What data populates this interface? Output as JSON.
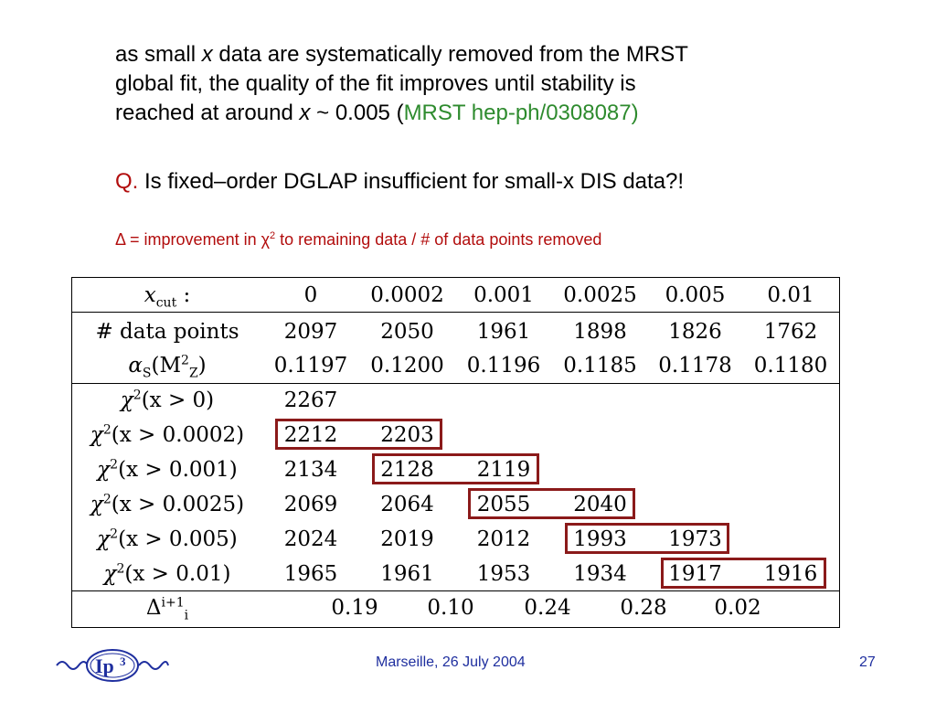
{
  "intro": {
    "line1_a": "as small ",
    "line1_x": "x",
    "line1_b": " data are systematically removed from the MRST",
    "line2": "global fit, the quality of the fit improves until stability is",
    "line3_a": "reached at around ",
    "line3_x": "x",
    "line3_b": " ~ 0.005 (",
    "line3_ref": "MRST hep-ph/0308087)",
    "colors": {
      "text": "#000000",
      "ref": "#2e8b2e"
    }
  },
  "question": {
    "prefix": "Q.",
    "text": " Is fixed–order DGLAP insufficient for small-x DIS data?!",
    "prefix_color": "#b20d0d"
  },
  "delta_note": {
    "a": "Δ = improvement in χ",
    "sup": "2",
    "b": " to remaining data / # of data points removed",
    "color": "#b20d0d"
  },
  "table": {
    "header_row_label": "x_cut :",
    "header_label_main": "x",
    "header_label_sub": "cut",
    "header_label_tail": " :",
    "xcut_values": [
      "0",
      "0.0002",
      "0.001",
      "0.0025",
      "0.005",
      "0.01"
    ],
    "datapoints_label": "# data points",
    "datapoints": [
      "2097",
      "2050",
      "1961",
      "1898",
      "1826",
      "1762"
    ],
    "alpha_label_a": "α",
    "alpha_label_sub": "S",
    "alpha_label_b": "(M",
    "alpha_label_msub": "Z",
    "alpha_label_msup": "2",
    "alpha_label_c": ")",
    "alpha_values": [
      "0.1197",
      "0.1200",
      "0.1196",
      "0.1185",
      "0.1178",
      "0.1180"
    ],
    "chi_rows": [
      {
        "label_a": "χ",
        "label_sup": "2",
        "label_b": "(x > 0)",
        "values": [
          "2267",
          "",
          "",
          "",
          "",
          ""
        ]
      },
      {
        "label_a": "χ",
        "label_sup": "2",
        "label_b": "(x > 0.0002)",
        "values": [
          "2212",
          "2203",
          "",
          "",
          "",
          ""
        ]
      },
      {
        "label_a": "χ",
        "label_sup": "2",
        "label_b": "(x > 0.001)",
        "values": [
          "2134",
          "2128",
          "2119",
          "",
          "",
          ""
        ]
      },
      {
        "label_a": "χ",
        "label_sup": "2",
        "label_b": "(x > 0.0025)",
        "values": [
          "2069",
          "2064",
          "2055",
          "2040",
          "",
          ""
        ]
      },
      {
        "label_a": "χ",
        "label_sup": "2",
        "label_b": "(x > 0.005)",
        "values": [
          "2024",
          "2019",
          "2012",
          "1993",
          "1973",
          ""
        ]
      },
      {
        "label_a": "χ",
        "label_sup": "2",
        "label_b": "(x > 0.01)",
        "values": [
          "1965",
          "1961",
          "1953",
          "1934",
          "1917",
          "1916"
        ]
      }
    ],
    "delta_label_a": "Δ",
    "delta_label_sub": "i",
    "delta_label_sup": "i+1",
    "delta_values": [
      "0.19",
      "0.10",
      "0.24",
      "0.28",
      "0.02"
    ],
    "highlight_color": "#8b1a1a"
  },
  "footer": {
    "location_date": "Marseille, 26 July 2004",
    "page_number": "27",
    "logo_text": "Ip",
    "logo_sup": "3",
    "color": "#1f2f9f"
  }
}
